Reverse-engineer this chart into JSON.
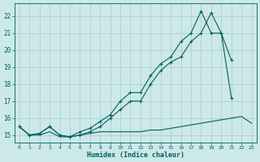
{
  "xlabel": "Humidex (Indice chaleur)",
  "x": [
    0,
    1,
    2,
    3,
    4,
    5,
    6,
    7,
    8,
    9,
    10,
    11,
    12,
    13,
    14,
    15,
    16,
    17,
    18,
    19,
    20,
    21,
    22,
    23
  ],
  "line1_y": [
    15.5,
    15.0,
    15.0,
    15.2,
    14.9,
    14.9,
    15.0,
    15.1,
    15.2,
    15.2,
    15.2,
    15.2,
    15.2,
    15.3,
    15.3,
    15.4,
    15.5,
    15.6,
    15.7,
    15.8,
    15.9,
    16.0,
    16.1,
    15.7
  ],
  "line2_y": [
    15.5,
    15.0,
    15.1,
    15.5,
    15.0,
    14.9,
    15.0,
    15.2,
    15.5,
    16.0,
    16.5,
    17.0,
    17.0,
    18.0,
    18.8,
    19.3,
    19.6,
    20.5,
    21.0,
    22.2,
    21.0,
    19.4,
    null,
    null
  ],
  "line3_y": [
    15.5,
    15.0,
    15.1,
    15.5,
    15.0,
    14.9,
    15.2,
    15.4,
    15.8,
    16.2,
    17.0,
    17.5,
    17.5,
    18.5,
    19.2,
    19.6,
    20.5,
    21.0,
    22.3,
    21.0,
    21.0,
    17.2,
    null,
    null
  ],
  "bg_color": "#cde8e8",
  "grid_color": "#a8cccc",
  "line_color": "#006060",
  "ylim_min": 14.55,
  "ylim_max": 22.75,
  "xlim_min": -0.5,
  "xlim_max": 23.5,
  "yticks": [
    15,
    16,
    17,
    18,
    19,
    20,
    21,
    22
  ],
  "xticks": [
    0,
    1,
    2,
    3,
    4,
    5,
    6,
    7,
    8,
    9,
    10,
    11,
    12,
    13,
    14,
    15,
    16,
    17,
    18,
    19,
    20,
    21,
    22,
    23
  ]
}
